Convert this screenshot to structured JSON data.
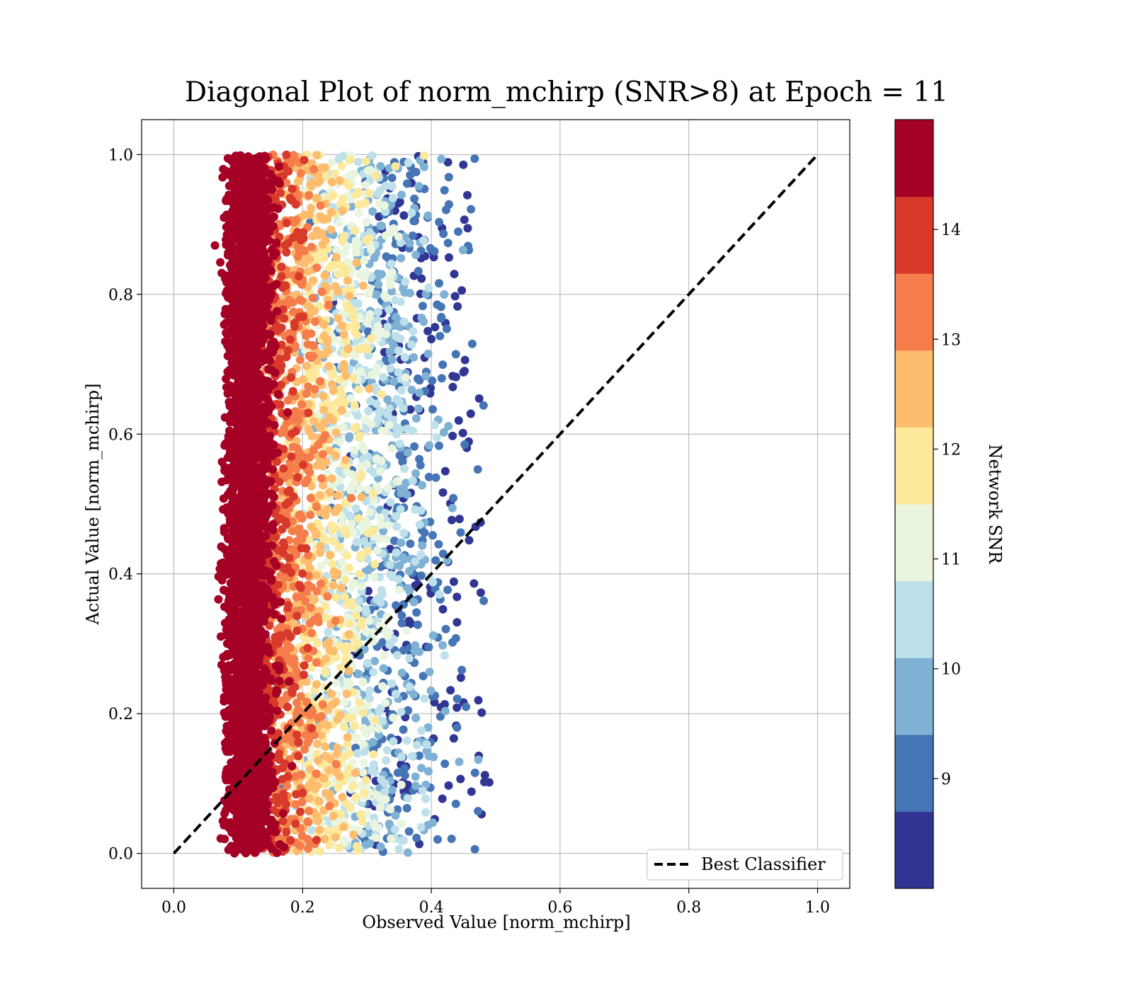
{
  "chart_data": {
    "type": "scatter",
    "title": "Diagonal Plot of norm_mchirp (SNR>8) at Epoch = 11",
    "xlabel": "Observed Value [norm_mchirp]",
    "ylabel": "Actual Value [norm_mchirp]",
    "xlim": [
      -0.05,
      1.05
    ],
    "ylim": [
      -0.05,
      1.05
    ],
    "xticks": [
      "0.0",
      "0.2",
      "0.4",
      "0.6",
      "0.8",
      "1.0"
    ],
    "yticks": [
      "0.0",
      "0.2",
      "0.4",
      "0.6",
      "0.8",
      "1.0"
    ],
    "grid": true,
    "reference_line": {
      "name": "Best Classifier",
      "x": [
        0.0,
        1.0
      ],
      "y": [
        0.0,
        1.0
      ],
      "style": "dashed",
      "color": "#000000"
    },
    "legend": {
      "position": "lower-right",
      "entries": [
        "Best Classifier"
      ]
    },
    "colorbar": {
      "label": "Network SNR",
      "range": [
        8,
        15
      ],
      "ticks": [
        "9",
        "10",
        "11",
        "12",
        "13",
        "14"
      ],
      "ticks_values": [
        9,
        10,
        11,
        12,
        13,
        14
      ],
      "bands": [
        {
          "from": 8.0,
          "to": 8.7,
          "color": "#313695"
        },
        {
          "from": 8.7,
          "to": 9.4,
          "color": "#4575b4"
        },
        {
          "from": 9.4,
          "to": 10.1,
          "color": "#7fb1d4"
        },
        {
          "from": 10.1,
          "to": 10.8,
          "color": "#bde0ea"
        },
        {
          "from": 10.8,
          "to": 11.5,
          "color": "#eaf5df"
        },
        {
          "from": 11.5,
          "to": 12.2,
          "color": "#fde99c"
        },
        {
          "from": 12.2,
          "to": 12.9,
          "color": "#fdbc6e"
        },
        {
          "from": 12.9,
          "to": 13.6,
          "color": "#f47d4b"
        },
        {
          "from": 13.6,
          "to": 14.3,
          "color": "#d7392a"
        },
        {
          "from": 14.3,
          "to": 15.0,
          "color": "#a50026"
        }
      ]
    },
    "scatter_summary": {
      "y_range": [
        0.0,
        1.0
      ],
      "high_snr_x_range": [
        0.07,
        0.15
      ],
      "max_x": 0.49,
      "trend": "lower SNR points spread to larger observed values"
    }
  }
}
